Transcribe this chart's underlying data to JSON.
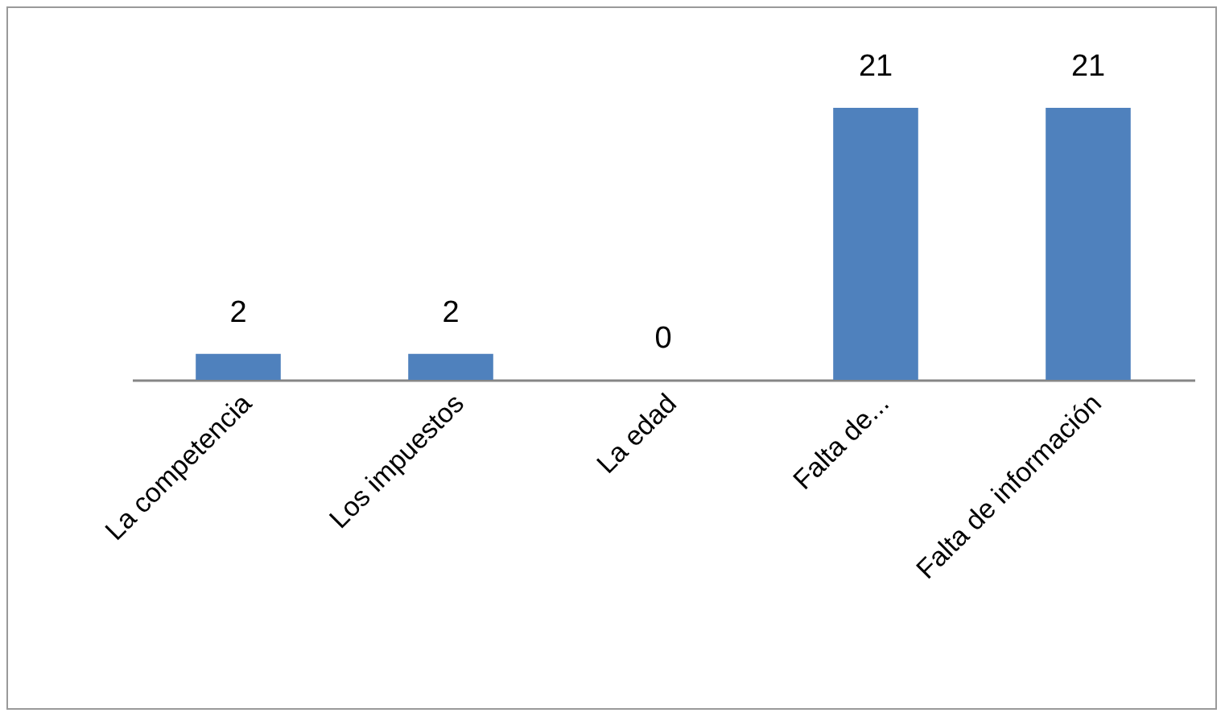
{
  "chart_data": {
    "type": "bar",
    "categories": [
      "La competencia",
      "Los impuestos",
      "La edad",
      "Falta de...",
      "Falta de información"
    ],
    "values": [
      2,
      2,
      0,
      21,
      21
    ],
    "color": "#4f81bd",
    "data_labels": true
  }
}
